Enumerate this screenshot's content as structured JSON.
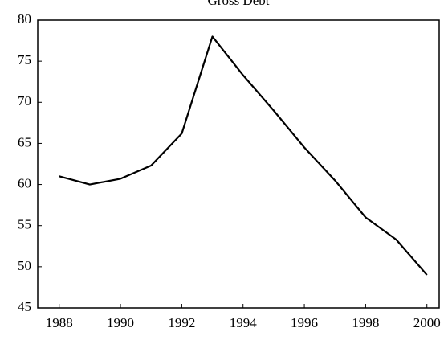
{
  "chart_data": {
    "type": "line",
    "title": "Gross Debt",
    "x": [
      1988,
      1989,
      1990,
      1991,
      1992,
      1993,
      1994,
      1995,
      1996,
      1997,
      1998,
      1999,
      2000
    ],
    "values": [
      61,
      60,
      60.7,
      62.3,
      66.2,
      78,
      73.3,
      69,
      64.5,
      60.5,
      56,
      53.3,
      49
    ],
    "color": "#000000",
    "xlim": [
      1987.3,
      2000.4
    ],
    "xticks": [
      1988,
      1990,
      1992,
      1994,
      1996,
      1998,
      2000
    ],
    "ylim": [
      45,
      80
    ],
    "yticks": [
      45,
      50,
      55,
      60,
      65,
      70,
      75,
      80
    ],
    "grid": false
  }
}
